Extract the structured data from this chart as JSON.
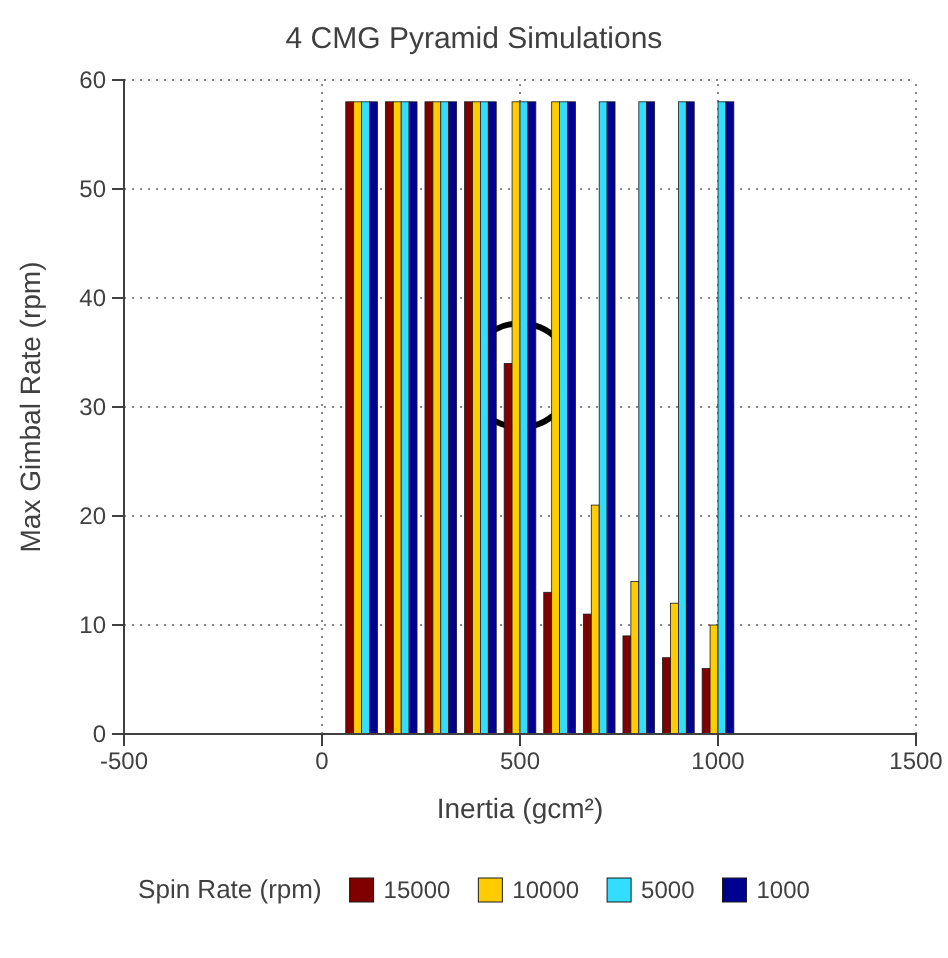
{
  "chart_data": {
    "type": "bar",
    "title": "4 CMG Pyramid Simulations",
    "xlabel": "Inertia (gcm²)",
    "ylabel": "Max Gimbal Rate (rpm)",
    "legend_title": "Spin Rate (rpm)",
    "x": [
      100,
      200,
      300,
      400,
      500,
      600,
      700,
      800,
      900,
      1000
    ],
    "series": [
      {
        "name": "15000",
        "color": "#800000",
        "values": [
          58,
          58,
          58,
          58,
          34,
          13,
          11,
          9,
          7,
          6
        ]
      },
      {
        "name": "10000",
        "color": "#ffcc00",
        "values": [
          58,
          58,
          58,
          58,
          58,
          58,
          21,
          14,
          12,
          10
        ]
      },
      {
        "name": "5000",
        "color": "#33ddff",
        "values": [
          58,
          58,
          58,
          58,
          58,
          58,
          58,
          58,
          58,
          58
        ]
      },
      {
        "name": "1000",
        "color": "#000090",
        "values": [
          58,
          58,
          58,
          58,
          58,
          58,
          58,
          58,
          58,
          58
        ]
      }
    ],
    "xlim": [
      -500,
      1500
    ],
    "xticks": [
      -500,
      0,
      500,
      1000,
      1500
    ],
    "ylim": [
      0,
      60
    ],
    "yticks": [
      0,
      10,
      20,
      30,
      40,
      50,
      60
    ],
    "grid": true,
    "legend": "bottom"
  }
}
